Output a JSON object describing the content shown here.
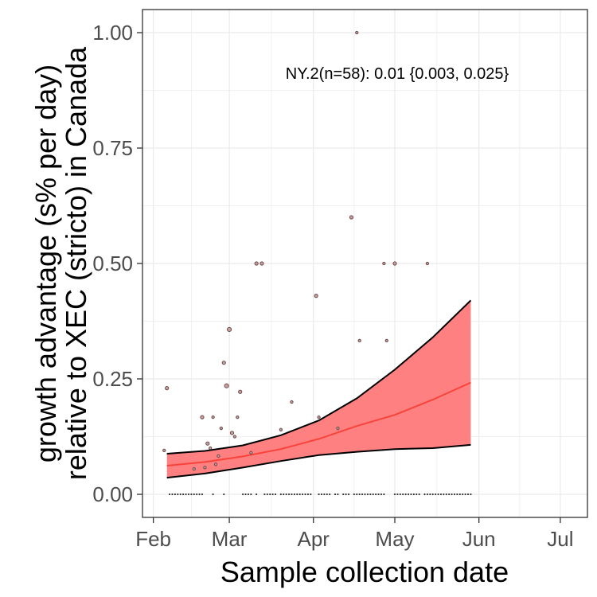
{
  "chart_data": {
    "type": "scatter",
    "xlabel": "Sample collection date",
    "ylabel_lines": [
      "growth advantage (s% per day)",
      "relative to XEC (stricto) in Canada"
    ],
    "annotation": "NY.2(n=58): 0.01 {0.003, 0.025}",
    "x_ticks": [
      {
        "date": "2025-02-01",
        "label": "Feb"
      },
      {
        "date": "2025-03-01",
        "label": "Mar"
      },
      {
        "date": "2025-04-01",
        "label": "Apr"
      },
      {
        "date": "2025-05-01",
        "label": "May"
      },
      {
        "date": "2025-06-01",
        "label": "Jun"
      },
      {
        "date": "2025-07-01",
        "label": "Jul"
      }
    ],
    "xlim": [
      "2025-01-28",
      "2025-07-11"
    ],
    "y_ticks": [
      0,
      0.25,
      0.5,
      0.75,
      1.0
    ],
    "y_tick_labels": [
      "0.00",
      "0.25",
      "0.50",
      "0.75",
      "1.00"
    ],
    "ylim": [
      -0.05,
      1.05
    ],
    "grid": true,
    "colors": {
      "ribbon": "#ff8080",
      "fit": "#f8433b",
      "bounds": "#000000",
      "points": "#6b4a4a",
      "grid": "#ebebeb"
    },
    "fit": {
      "dates": [
        "2025-02-06",
        "2025-02-20",
        "2025-03-06",
        "2025-03-20",
        "2025-04-03",
        "2025-04-17",
        "2025-05-01",
        "2025-05-15",
        "2025-05-29"
      ],
      "estimate": [
        0.062,
        0.07,
        0.082,
        0.098,
        0.12,
        0.148,
        0.172,
        0.205,
        0.242
      ],
      "lower": [
        0.036,
        0.045,
        0.058,
        0.072,
        0.085,
        0.092,
        0.098,
        0.1,
        0.107
      ],
      "upper": [
        0.088,
        0.094,
        0.106,
        0.128,
        0.16,
        0.208,
        0.27,
        0.34,
        0.42
      ]
    },
    "points": [
      {
        "date": "2025-02-05",
        "value": 0.095,
        "n": 1
      },
      {
        "date": "2025-02-06",
        "value": 0.23,
        "n": 2
      },
      {
        "date": "2025-02-16",
        "value": 0.055,
        "n": 1
      },
      {
        "date": "2025-02-19",
        "value": 0.167,
        "n": 2
      },
      {
        "date": "2025-02-20",
        "value": 0.058,
        "n": 1
      },
      {
        "date": "2025-02-21",
        "value": 0.11,
        "n": 2
      },
      {
        "date": "2025-02-22",
        "value": 0.1,
        "n": 1
      },
      {
        "date": "2025-02-23",
        "value": 0.167,
        "n": 1
      },
      {
        "date": "2025-02-24",
        "value": 0.065,
        "n": 1
      },
      {
        "date": "2025-02-25",
        "value": 0.083,
        "n": 1
      },
      {
        "date": "2025-02-26",
        "value": 0.143,
        "n": 1
      },
      {
        "date": "2025-02-27",
        "value": 0.285,
        "n": 2
      },
      {
        "date": "2025-02-28",
        "value": 0.235,
        "n": 3
      },
      {
        "date": "2025-03-01",
        "value": 0.357,
        "n": 3
      },
      {
        "date": "2025-03-02",
        "value": 0.133,
        "n": 2
      },
      {
        "date": "2025-03-03",
        "value": 0.125,
        "n": 1
      },
      {
        "date": "2025-03-04",
        "value": 0.167,
        "n": 1
      },
      {
        "date": "2025-03-05",
        "value": 0.222,
        "n": 2
      },
      {
        "date": "2025-03-09",
        "value": 0.09,
        "n": 1
      },
      {
        "date": "2025-03-11",
        "value": 0.5,
        "n": 2
      },
      {
        "date": "2025-03-13",
        "value": 0.5,
        "n": 2
      },
      {
        "date": "2025-03-20",
        "value": 0.14,
        "n": 1
      },
      {
        "date": "2025-03-24",
        "value": 0.2,
        "n": 1
      },
      {
        "date": "2025-04-02",
        "value": 0.43,
        "n": 2
      },
      {
        "date": "2025-04-03",
        "value": 0.167,
        "n": 1
      },
      {
        "date": "2025-04-10",
        "value": 0.143,
        "n": 1
      },
      {
        "date": "2025-04-15",
        "value": 0.6,
        "n": 2
      },
      {
        "date": "2025-04-17",
        "value": 1.0,
        "n": 1
      },
      {
        "date": "2025-04-18",
        "value": 0.333,
        "n": 1
      },
      {
        "date": "2025-04-27",
        "value": 0.5,
        "n": 1
      },
      {
        "date": "2025-04-28",
        "value": 0.333,
        "n": 1
      },
      {
        "date": "2025-05-01",
        "value": 0.5,
        "n": 2
      },
      {
        "date": "2025-05-13",
        "value": 0.5,
        "n": 1
      }
    ],
    "zero_points_dates": [
      "2025-02-07",
      "2025-02-08",
      "2025-02-09",
      "2025-02-10",
      "2025-02-11",
      "2025-02-12",
      "2025-02-13",
      "2025-02-14",
      "2025-02-15",
      "2025-02-16",
      "2025-02-17",
      "2025-02-18",
      "2025-02-19",
      "2025-02-23",
      "2025-02-27",
      "2025-03-06",
      "2025-03-07",
      "2025-03-08",
      "2025-03-09",
      "2025-03-11",
      "2025-03-14",
      "2025-03-15",
      "2025-03-16",
      "2025-03-17",
      "2025-03-18",
      "2025-03-20",
      "2025-03-21",
      "2025-03-22",
      "2025-03-23",
      "2025-03-24",
      "2025-03-25",
      "2025-03-26",
      "2025-03-27",
      "2025-03-28",
      "2025-03-29",
      "2025-03-30",
      "2025-03-31",
      "2025-04-03",
      "2025-04-04",
      "2025-04-05",
      "2025-04-06",
      "2025-04-07",
      "2025-04-09",
      "2025-04-10",
      "2025-04-12",
      "2025-04-13",
      "2025-04-14",
      "2025-04-16",
      "2025-04-17",
      "2025-04-18",
      "2025-04-19",
      "2025-04-20",
      "2025-04-21",
      "2025-04-22",
      "2025-04-23",
      "2025-04-24",
      "2025-04-25",
      "2025-04-26",
      "2025-04-27",
      "2025-05-01",
      "2025-05-02",
      "2025-05-03",
      "2025-05-04",
      "2025-05-05",
      "2025-05-06",
      "2025-05-07",
      "2025-05-08",
      "2025-05-09",
      "2025-05-10",
      "2025-05-12",
      "2025-05-13",
      "2025-05-14",
      "2025-05-15",
      "2025-05-16",
      "2025-05-17",
      "2025-05-18",
      "2025-05-19",
      "2025-05-20",
      "2025-05-21",
      "2025-05-22",
      "2025-05-23",
      "2025-05-24",
      "2025-05-25",
      "2025-05-26",
      "2025-05-27",
      "2025-05-28",
      "2025-05-29"
    ]
  }
}
